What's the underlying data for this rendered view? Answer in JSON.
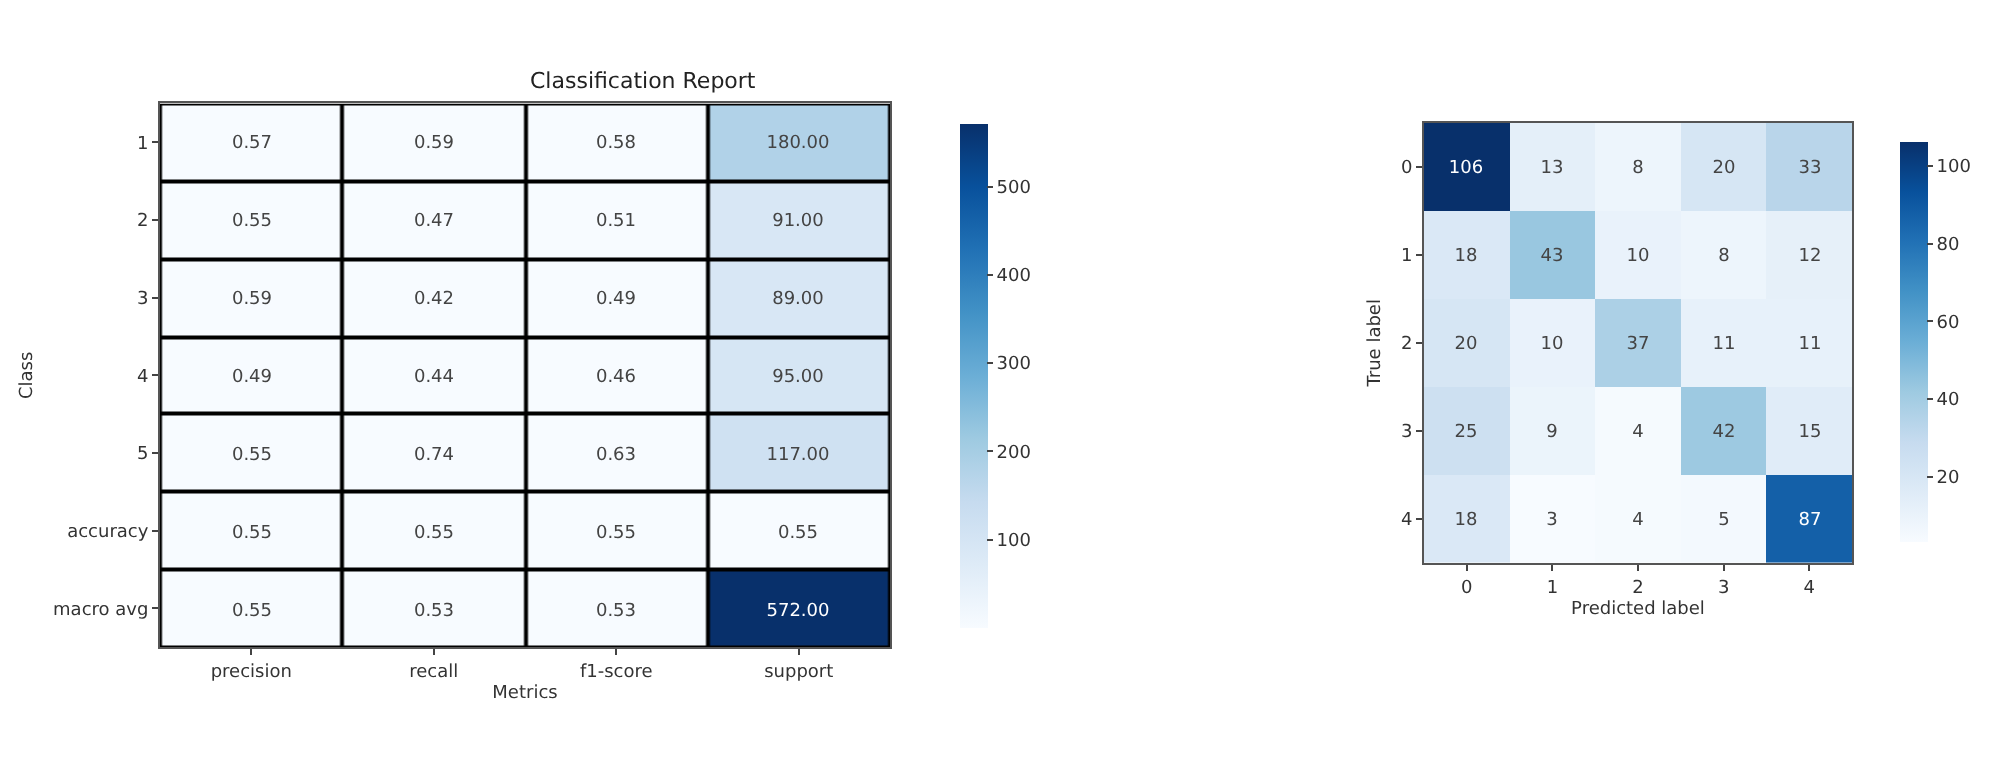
{
  "chart_data": [
    {
      "type": "heatmap",
      "title": "Classification Report",
      "xlabel": "Metrics",
      "ylabel": "Class",
      "categories": [
        "precision",
        "recall",
        "f1-score",
        "support"
      ],
      "y_categories": [
        "1",
        "2",
        "3",
        "4",
        "5",
        "accuracy",
        "macro avg"
      ],
      "cells": [
        [
          0.57,
          0.59,
          0.58,
          180
        ],
        [
          0.55,
          0.47,
          0.51,
          91
        ],
        [
          0.59,
          0.42,
          0.49,
          89
        ],
        [
          0.49,
          0.44,
          0.46,
          95
        ],
        [
          0.55,
          0.74,
          0.63,
          117
        ],
        [
          0.55,
          0.55,
          0.55,
          0.55
        ],
        [
          0.55,
          0.53,
          0.53,
          572
        ]
      ],
      "cell_labels": [
        [
          "0.57",
          "0.59",
          "0.58",
          "180.00"
        ],
        [
          "0.55",
          "0.47",
          "0.51",
          "91.00"
        ],
        [
          "0.59",
          "0.42",
          "0.49",
          "89.00"
        ],
        [
          "0.49",
          "0.44",
          "0.46",
          "95.00"
        ],
        [
          "0.55",
          "0.74",
          "0.63",
          "117.00"
        ],
        [
          "0.55",
          "0.55",
          "0.55",
          "0.55"
        ],
        [
          "0.55",
          "0.53",
          "0.53",
          "572.00"
        ]
      ],
      "clim": [
        0.42,
        572
      ],
      "cticks": [
        100,
        200,
        300,
        400,
        500
      ]
    },
    {
      "type": "heatmap",
      "xlabel": "Predicted label",
      "ylabel": "True label",
      "categories": [
        "0",
        "1",
        "2",
        "3",
        "4"
      ],
      "y_categories": [
        "0",
        "1",
        "2",
        "3",
        "4"
      ],
      "cells": [
        [
          106,
          13,
          8,
          20,
          33
        ],
        [
          18,
          43,
          10,
          8,
          12
        ],
        [
          20,
          10,
          37,
          11,
          11
        ],
        [
          25,
          9,
          4,
          42,
          15
        ],
        [
          18,
          3,
          4,
          5,
          87
        ]
      ],
      "data_labels": true,
      "clim": [
        3,
        106
      ],
      "cticks": [
        20,
        40,
        60,
        80,
        100
      ]
    }
  ]
}
